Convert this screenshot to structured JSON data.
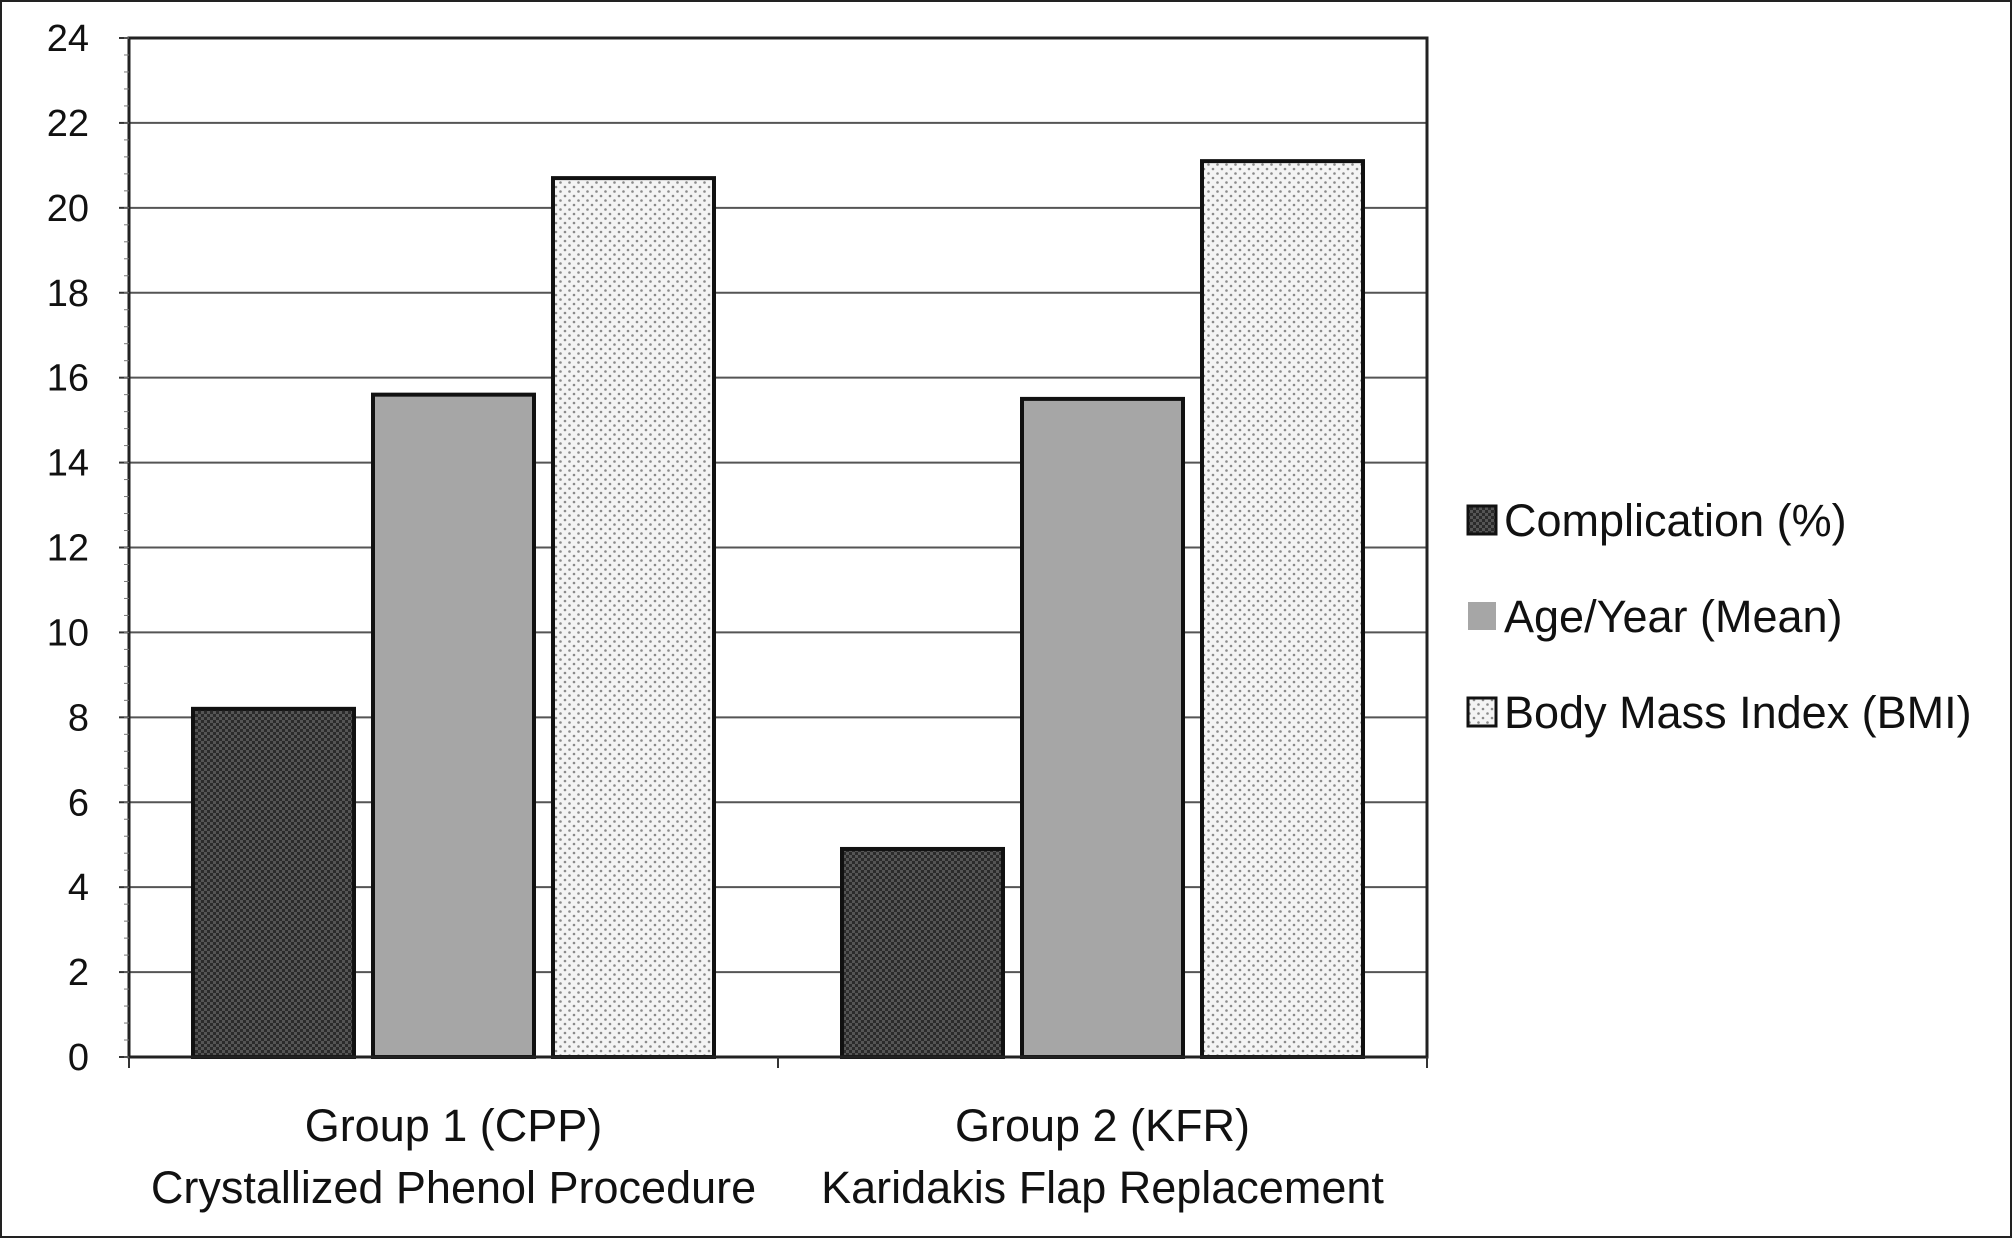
{
  "chart_data": {
    "type": "bar",
    "categories": [
      [
        "Group 1 (CPP)",
        "Crystallized Phenol Procedure"
      ],
      [
        "Group 2 (KFR)",
        "Karidakis Flap Replacement"
      ]
    ],
    "series": [
      {
        "name": "Complication (%)",
        "values": [
          8.2,
          4.9
        ],
        "color": "#262626",
        "pattern": "dense-checker"
      },
      {
        "name": "Age/Year (Mean)",
        "values": [
          15.6,
          15.5
        ],
        "color": "#a6a6a6",
        "pattern": "solid"
      },
      {
        "name": "Body Mass Index (BMI)",
        "values": [
          20.7,
          21.1
        ],
        "color": "#f2f2f2",
        "pattern": "sparse-dots"
      }
    ],
    "ylim": [
      0,
      24
    ],
    "yticks": [
      "0",
      "2",
      "4",
      "6",
      "8",
      "10",
      "12",
      "14",
      "16",
      "18",
      "20",
      "22",
      "24"
    ],
    "grid": true,
    "legend_position": "right",
    "xlabel": "",
    "ylabel": ""
  }
}
